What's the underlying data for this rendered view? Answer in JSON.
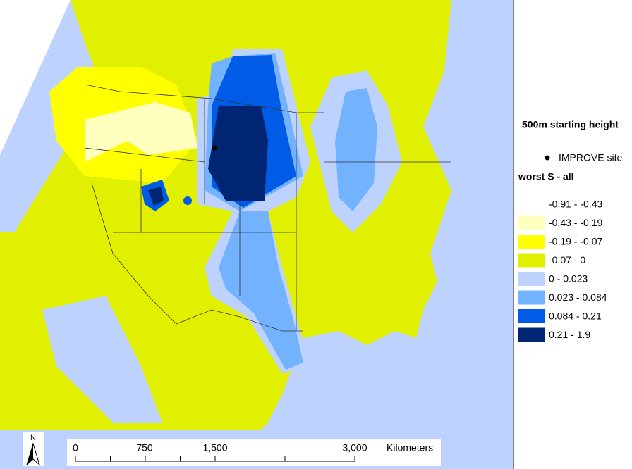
{
  "legend": {
    "heading": "500m starting height",
    "site_label": "IMPROVE site",
    "title": "worst S - all",
    "classes": [
      {
        "label": "-0.91 - -0.43",
        "color": "#ffffff"
      },
      {
        "label": "-0.43 - -0.19",
        "color": "#ffffbe"
      },
      {
        "label": "-0.19 - -0.07",
        "color": "#ffff00"
      },
      {
        "label": "-0.07 - 0",
        "color": "#e1f000"
      },
      {
        "label": "0 - 0.023",
        "color": "#bed2ff"
      },
      {
        "label": "0.023 - 0.084",
        "color": "#73b2ff"
      },
      {
        "label": "0.084 - 0.21",
        "color": "#005ce6"
      },
      {
        "label": "0.21 - 1.9",
        "color": "#002673"
      }
    ]
  },
  "scale_bar": {
    "labels": [
      "0",
      "750",
      "1,500",
      "3,000"
    ],
    "unit": "Kilometers"
  },
  "north_arrow": "N"
}
